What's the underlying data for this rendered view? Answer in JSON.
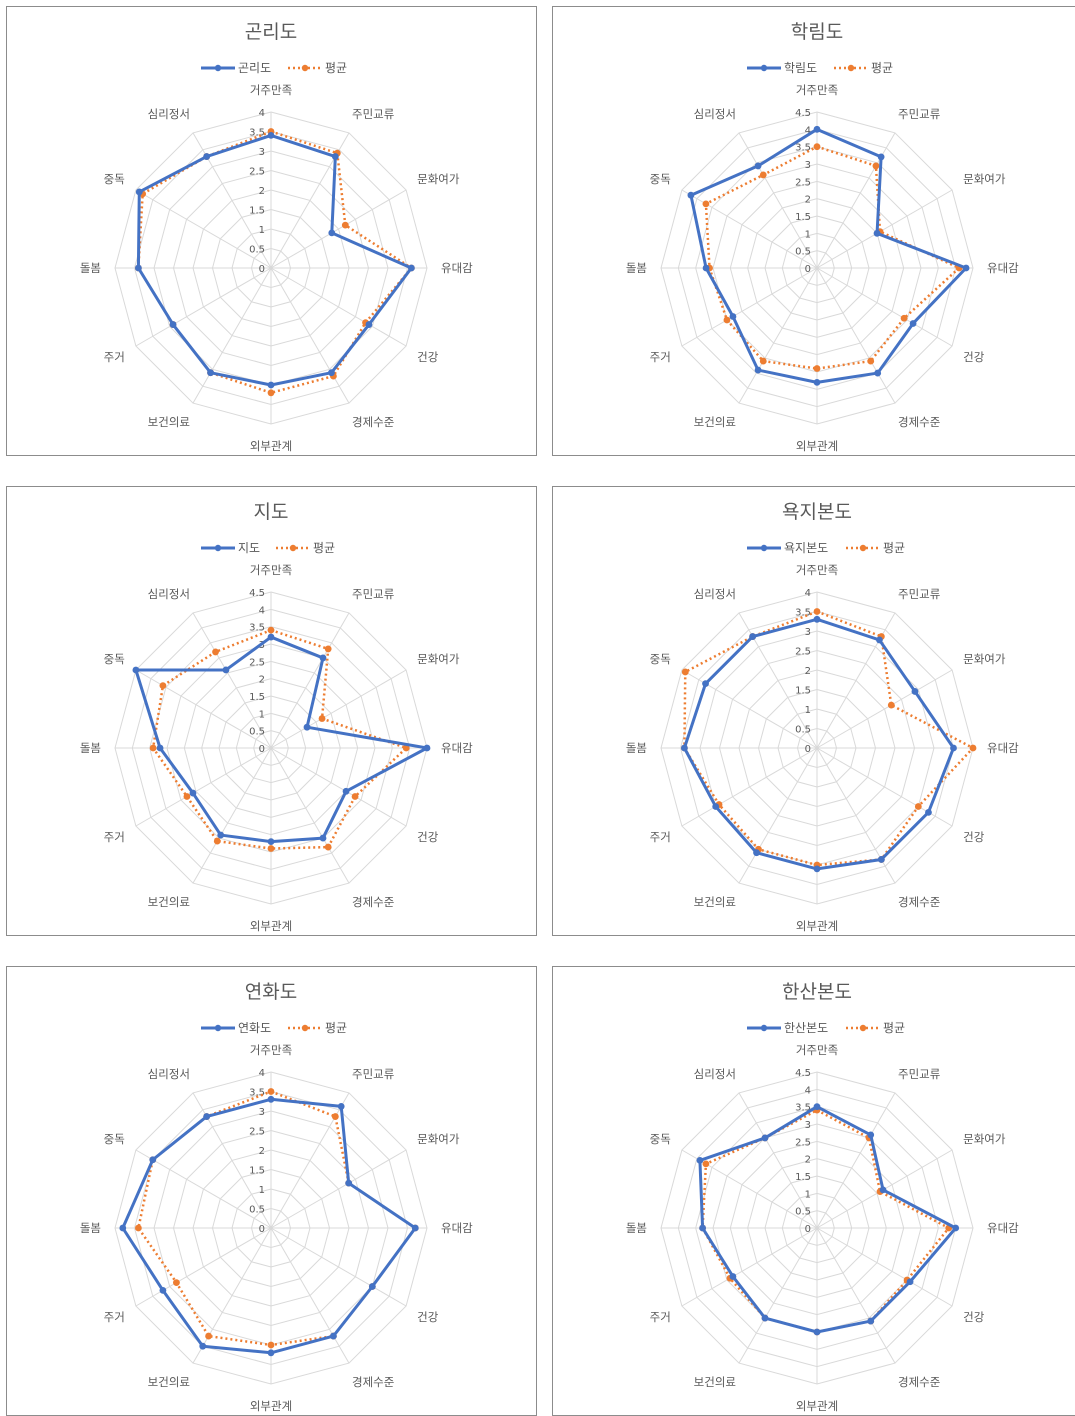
{
  "chart_data": [
    {
      "type": "radar",
      "title": "곤리도",
      "categories": [
        "거주만족",
        "주민교류",
        "문화여가",
        "유대감",
        "건강",
        "경제수준",
        "외부관계",
        "보건의료",
        "주거",
        "돌봄",
        "중독",
        "심리정서"
      ],
      "ylim": [
        0,
        4
      ],
      "ticks": [
        "0",
        "0.5",
        "1",
        "1.5",
        "2",
        "2.5",
        "3",
        "3.5",
        "4"
      ],
      "legend_position": "top",
      "series": [
        {
          "name": "곤리도",
          "values": [
            3.4,
            3.3,
            1.8,
            3.6,
            2.9,
            3.1,
            3.0,
            3.1,
            2.9,
            3.4,
            3.9,
            3.3
          ]
        },
        {
          "name": "평균",
          "values": [
            3.5,
            3.4,
            2.2,
            3.6,
            2.8,
            3.2,
            3.2,
            3.1,
            2.9,
            3.4,
            3.8,
            3.3
          ]
        }
      ]
    },
    {
      "type": "radar",
      "title": "학림도",
      "categories": [
        "거주만족",
        "주민교류",
        "문화여가",
        "유대감",
        "건강",
        "경제수준",
        "외부관계",
        "보건의료",
        "주거",
        "돌봄",
        "중독",
        "심리정서"
      ],
      "ylim": [
        0,
        4.5
      ],
      "ticks": [
        "0",
        "0.5",
        "1",
        "1.5",
        "2",
        "2.5",
        "3",
        "3.5",
        "4",
        "4.5"
      ],
      "legend_position": "top",
      "series": [
        {
          "name": "학림도",
          "values": [
            4.0,
            3.7,
            2.0,
            4.3,
            3.2,
            3.5,
            3.3,
            3.4,
            2.8,
            3.2,
            4.2,
            3.4
          ]
        },
        {
          "name": "평균",
          "values": [
            3.5,
            3.4,
            2.1,
            4.1,
            2.9,
            3.1,
            2.9,
            3.1,
            3.0,
            3.1,
            3.7,
            3.1
          ]
        }
      ]
    },
    {
      "type": "radar",
      "title": "지도",
      "categories": [
        "거주만족",
        "주민교류",
        "문화여가",
        "유대감",
        "건강",
        "경제수준",
        "외부관계",
        "보건의료",
        "주거",
        "돌봄",
        "중독",
        "심리정서"
      ],
      "ylim": [
        0,
        4.5
      ],
      "ticks": [
        "0",
        "0.5",
        "1",
        "1.5",
        "2",
        "2.5",
        "3",
        "3.5",
        "4",
        "4.5"
      ],
      "legend_position": "top",
      "series": [
        {
          "name": "지도",
          "values": [
            3.2,
            3.0,
            1.2,
            4.5,
            2.5,
            3.0,
            2.7,
            2.9,
            2.6,
            3.2,
            4.5,
            2.6
          ]
        },
        {
          "name": "평균",
          "values": [
            3.4,
            3.3,
            1.7,
            3.9,
            2.8,
            3.3,
            2.9,
            3.1,
            2.8,
            3.4,
            3.6,
            3.2
          ]
        }
      ]
    },
    {
      "type": "radar",
      "title": "욕지본도",
      "categories": [
        "거주만족",
        "주민교류",
        "문화여가",
        "유대감",
        "건강",
        "경제수준",
        "외부관계",
        "보건의료",
        "주거",
        "돌봄",
        "중독",
        "심리정서"
      ],
      "ylim": [
        0,
        4
      ],
      "ticks": [
        "0",
        "0.5",
        "1",
        "1.5",
        "2",
        "2.5",
        "3",
        "3.5",
        "4"
      ],
      "legend_position": "top",
      "series": [
        {
          "name": "욕지본도",
          "values": [
            3.3,
            3.2,
            2.9,
            3.5,
            3.3,
            3.3,
            3.1,
            3.1,
            3.0,
            3.4,
            3.3,
            3.3
          ]
        },
        {
          "name": "평균",
          "values": [
            3.5,
            3.3,
            2.2,
            4.0,
            3.0,
            3.3,
            3.0,
            3.0,
            2.9,
            3.4,
            3.9,
            3.3
          ]
        }
      ]
    },
    {
      "type": "radar",
      "title": "연화도",
      "categories": [
        "거주만족",
        "주민교류",
        "문화여가",
        "유대감",
        "건강",
        "경제수준",
        "외부관계",
        "보건의료",
        "주거",
        "돌봄",
        "중독",
        "심리정서"
      ],
      "ylim": [
        0,
        4
      ],
      "ticks": [
        "0",
        "0.5",
        "1",
        "1.5",
        "2",
        "2.5",
        "3",
        "3.5",
        "4"
      ],
      "legend_position": "top",
      "series": [
        {
          "name": "연화도",
          "values": [
            3.3,
            3.6,
            2.3,
            3.7,
            3.0,
            3.2,
            3.2,
            3.5,
            3.2,
            3.8,
            3.5,
            3.3
          ]
        },
        {
          "name": "평균",
          "values": [
            3.5,
            3.3,
            2.3,
            3.7,
            3.0,
            3.2,
            3.0,
            3.2,
            2.8,
            3.4,
            3.5,
            3.3
          ]
        }
      ]
    },
    {
      "type": "radar",
      "title": "한산본도",
      "categories": [
        "거주만족",
        "주민교류",
        "문화여가",
        "유대감",
        "건강",
        "경제수준",
        "외부관계",
        "보건의료",
        "주거",
        "돌봄",
        "중독",
        "심리정서"
      ],
      "ylim": [
        0,
        4.5
      ],
      "ticks": [
        "0",
        "0.5",
        "1",
        "1.5",
        "2",
        "2.5",
        "3",
        "3.5",
        "4",
        "4.5"
      ],
      "legend_position": "top",
      "series": [
        {
          "name": "한산본도",
          "values": [
            3.5,
            3.1,
            2.2,
            4.0,
            3.1,
            3.1,
            3.0,
            3.0,
            2.8,
            3.3,
            3.9,
            3.0
          ]
        },
        {
          "name": "평균",
          "values": [
            3.4,
            3.0,
            2.1,
            3.8,
            3.0,
            3.1,
            3.0,
            3.0,
            2.9,
            3.3,
            3.7,
            3.0
          ]
        }
      ]
    }
  ],
  "colors": {
    "series_island": "#4472C4",
    "series_avg": "#ED7D31",
    "grid": "#d9d9d9",
    "text": "#595959",
    "border": "#8c8c8c"
  }
}
